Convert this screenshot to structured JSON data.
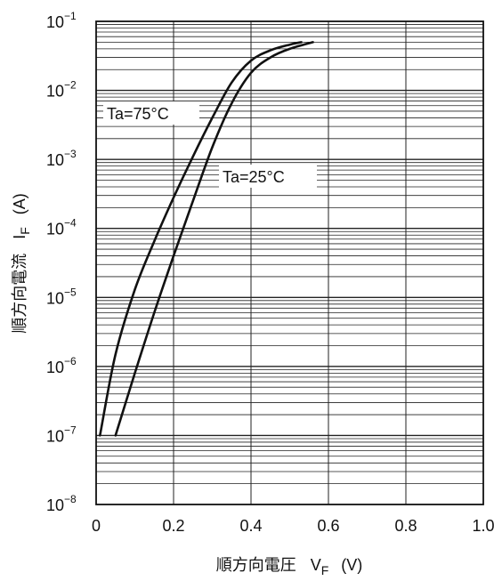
{
  "chart_data": {
    "type": "line",
    "title": "",
    "xlabel": {
      "main": "順方向電圧",
      "symbol": "V",
      "subscript": "F",
      "unit": "(V)"
    },
    "ylabel": {
      "main": "順方向電流",
      "symbol": "I",
      "subscript": "F",
      "unit": "(A)"
    },
    "xlim": [
      0,
      1.0
    ],
    "ylim": [
      1e-08,
      0.1
    ],
    "yscale": "log",
    "grid": true,
    "x_ticks": [
      "0",
      "0.2",
      "0.4",
      "0.6",
      "0.8",
      "1.0"
    ],
    "y_ticks": [
      {
        "base": "10",
        "exp": "−1"
      },
      {
        "base": "10",
        "exp": "−2"
      },
      {
        "base": "10",
        "exp": "−3"
      },
      {
        "base": "10",
        "exp": "−4"
      },
      {
        "base": "10",
        "exp": "−5"
      },
      {
        "base": "10",
        "exp": "−6"
      },
      {
        "base": "10",
        "exp": "−7"
      },
      {
        "base": "10",
        "exp": "−8"
      }
    ],
    "series": [
      {
        "name": "Ta=75°C",
        "x": [
          0.01,
          0.05,
          0.1,
          0.15,
          0.2,
          0.25,
          0.3,
          0.35,
          0.4,
          0.45,
          0.5,
          0.53
        ],
        "y": [
          1e-07,
          1.5e-06,
          1.3e-05,
          6.5e-05,
          0.00028,
          0.0011,
          0.004,
          0.013,
          0.027,
          0.038,
          0.046,
          0.05
        ]
      },
      {
        "name": "Ta=25°C",
        "x": [
          0.05,
          0.1,
          0.15,
          0.2,
          0.25,
          0.3,
          0.35,
          0.4,
          0.45,
          0.5,
          0.56
        ],
        "y": [
          1e-07,
          8e-07,
          6e-06,
          4e-05,
          0.00025,
          0.0015,
          0.0065,
          0.018,
          0.03,
          0.04,
          0.05
        ]
      }
    ]
  }
}
